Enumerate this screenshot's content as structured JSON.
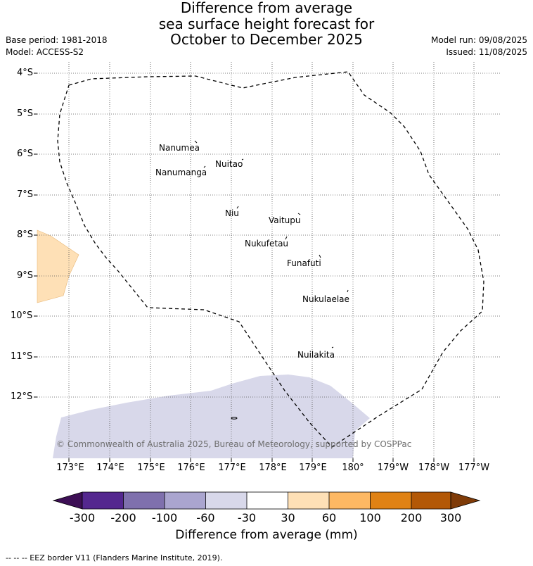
{
  "title": {
    "line1": "Difference from average",
    "line2": "sea surface height forecast for",
    "line3": "October to December 2025"
  },
  "meta": {
    "base_period": "Base period: 1981-2018",
    "model": "Model: ACCESS-S2",
    "model_run": "Model run: 09/08/2025",
    "issued": "Issued: 11/08/2025"
  },
  "latitude_labels": [
    "4°S",
    "5°S",
    "6°S",
    "7°S",
    "8°S",
    "9°S",
    "10°S",
    "11°S",
    "12°S"
  ],
  "longitude_labels": [
    "173°E",
    "174°E",
    "175°E",
    "176°E",
    "177°E",
    "178°E",
    "179°E",
    "180°",
    "179°W",
    "178°W",
    "177°W"
  ],
  "islands": [
    {
      "name": "Nanumea"
    },
    {
      "name": "Nuitao"
    },
    {
      "name": "Nanumanga"
    },
    {
      "name": "Niu"
    },
    {
      "name": "Vaitupu"
    },
    {
      "name": "Nukufetau"
    },
    {
      "name": "Funafuti"
    },
    {
      "name": "Nukulaelae"
    },
    {
      "name": "Nuilakita"
    }
  ],
  "copyright": "© Commonwealth of Australia 2025, Bureau of Meteorology, supported by COSPPac",
  "colorbar": {
    "ticks": [
      "-300",
      "-200",
      "-100",
      "-60",
      "-30",
      "30",
      "60",
      "100",
      "200",
      "300"
    ],
    "colors": [
      "#3d0f55",
      "#54278f",
      "#7f70ad",
      "#aaa5cf",
      "#d8d8ea",
      "#ffffff",
      "#fee0b6",
      "#fdb863",
      "#e08214",
      "#b35806",
      "#7f3b08"
    ],
    "label": "Difference from average (mm)"
  },
  "footnote": "-- -- -- EEZ border V11 (Flanders Marine Institute, 2019)."
}
